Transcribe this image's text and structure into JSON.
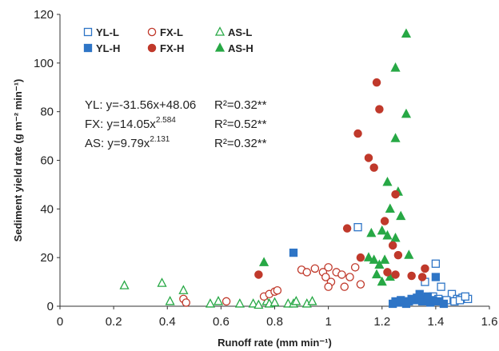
{
  "chart_data": {
    "type": "scatter",
    "title": "",
    "xlabel": "Runoff rate (mm min⁻¹)",
    "ylabel": "Sediment yield rate (g m⁻² min⁻¹)",
    "xlim": [
      0,
      1.6
    ],
    "ylim": [
      0,
      120
    ],
    "x_ticks": [
      "0",
      "0.2",
      "0.4",
      "0.6",
      "0.8",
      "1",
      "1.2",
      "1.4",
      "1.6"
    ],
    "y_ticks": [
      "0",
      "20",
      "40",
      "60",
      "80",
      "100",
      "120"
    ],
    "legend_position": "top-left",
    "equations": [
      {
        "lhs": "YL: y=-31.56x+48.06",
        "sup": "",
        "r2": "R²=0.32**"
      },
      {
        "lhs": "FX: y=14.05x",
        "sup": "2.584",
        "r2": "R²=0.52**"
      },
      {
        "lhs": "AS: y=9.79x",
        "sup": "2.131",
        "r2": "R²=0.32**"
      }
    ],
    "series": [
      {
        "name": "YL-L",
        "marker": "square",
        "filled": false,
        "color": "#2E75C6",
        "points": [
          [
            1.11,
            32.5
          ],
          [
            1.4,
            17.5
          ],
          [
            1.36,
            10
          ],
          [
            1.42,
            8
          ],
          [
            1.46,
            5
          ],
          [
            1.39,
            4
          ],
          [
            1.48,
            3
          ],
          [
            1.5,
            3.5
          ],
          [
            1.52,
            3
          ],
          [
            1.44,
            2.5
          ],
          [
            1.47,
            2
          ],
          [
            1.49,
            2.5
          ],
          [
            1.41,
            3
          ],
          [
            1.38,
            2
          ],
          [
            1.51,
            4
          ]
        ]
      },
      {
        "name": "YL-H",
        "marker": "square",
        "filled": true,
        "color": "#2E75C6",
        "points": [
          [
            0.87,
            22
          ],
          [
            1.4,
            12
          ],
          [
            1.34,
            5
          ],
          [
            1.36,
            3
          ],
          [
            1.32,
            2.5
          ],
          [
            1.3,
            2
          ],
          [
            1.28,
            2
          ],
          [
            1.26,
            1.5
          ],
          [
            1.25,
            2
          ],
          [
            1.33,
            3.5
          ],
          [
            1.35,
            2
          ],
          [
            1.38,
            1.5
          ],
          [
            1.41,
            2
          ],
          [
            1.43,
            1
          ],
          [
            1.37,
            4
          ],
          [
            1.29,
            1
          ],
          [
            1.31,
            3
          ],
          [
            1.39,
            2.5
          ],
          [
            1.27,
            2.5
          ],
          [
            1.24,
            1
          ]
        ]
      },
      {
        "name": "FX-L",
        "marker": "circle",
        "filled": false,
        "color": "#C0392B",
        "points": [
          [
            0.46,
            3
          ],
          [
            0.47,
            1.5
          ],
          [
            0.62,
            2
          ],
          [
            0.76,
            4
          ],
          [
            0.78,
            5
          ],
          [
            0.8,
            6
          ],
          [
            0.81,
            6.5
          ],
          [
            0.9,
            15
          ],
          [
            0.92,
            14
          ],
          [
            0.95,
            15.5
          ],
          [
            0.98,
            14
          ],
          [
            0.99,
            12
          ],
          [
            1.0,
            16
          ],
          [
            1.01,
            10
          ],
          [
            1.03,
            14
          ],
          [
            1.05,
            13
          ],
          [
            1.08,
            12
          ],
          [
            1.06,
            8
          ],
          [
            1.1,
            16
          ],
          [
            1.12,
            9
          ],
          [
            1.0,
            8
          ]
        ]
      },
      {
        "name": "FX-H",
        "marker": "circle",
        "filled": true,
        "color": "#C0392B",
        "points": [
          [
            0.74,
            13
          ],
          [
            1.18,
            92
          ],
          [
            1.19,
            81
          ],
          [
            1.11,
            71
          ],
          [
            1.15,
            61
          ],
          [
            1.17,
            57
          ],
          [
            1.25,
            46
          ],
          [
            1.07,
            32
          ],
          [
            1.21,
            35
          ],
          [
            1.24,
            25
          ],
          [
            1.12,
            20
          ],
          [
            1.26,
            21
          ],
          [
            1.31,
            12.5
          ],
          [
            1.36,
            15.5
          ],
          [
            1.35,
            12
          ],
          [
            1.25,
            13
          ],
          [
            1.22,
            14
          ]
        ]
      },
      {
        "name": "AS-L",
        "marker": "triangle",
        "filled": false,
        "color": "#27A845",
        "points": [
          [
            0.24,
            8.5
          ],
          [
            0.38,
            9.5
          ],
          [
            0.46,
            6.5
          ],
          [
            0.41,
            2
          ],
          [
            0.56,
            1
          ],
          [
            0.59,
            2
          ],
          [
            0.67,
            1
          ],
          [
            0.72,
            1
          ],
          [
            0.77,
            2
          ],
          [
            0.78,
            1
          ],
          [
            0.8,
            1.5
          ],
          [
            0.85,
            1
          ],
          [
            0.87,
            1
          ],
          [
            0.88,
            2
          ],
          [
            0.92,
            1
          ],
          [
            0.94,
            2
          ],
          [
            0.74,
            0.5
          ]
        ]
      },
      {
        "name": "AS-H",
        "marker": "triangle",
        "filled": true,
        "color": "#27A845",
        "points": [
          [
            1.29,
            112
          ],
          [
            1.25,
            98
          ],
          [
            1.29,
            79
          ],
          [
            1.25,
            69
          ],
          [
            1.26,
            47
          ],
          [
            1.22,
            51
          ],
          [
            1.23,
            40
          ],
          [
            1.27,
            37
          ],
          [
            1.2,
            31
          ],
          [
            1.22,
            29
          ],
          [
            1.16,
            30
          ],
          [
            1.25,
            28
          ],
          [
            1.15,
            20
          ],
          [
            1.17,
            19
          ],
          [
            1.19,
            17
          ],
          [
            1.21,
            19
          ],
          [
            1.23,
            12
          ],
          [
            1.18,
            13
          ],
          [
            1.3,
            21
          ],
          [
            1.2,
            10
          ],
          [
            0.76,
            18
          ]
        ]
      }
    ]
  }
}
